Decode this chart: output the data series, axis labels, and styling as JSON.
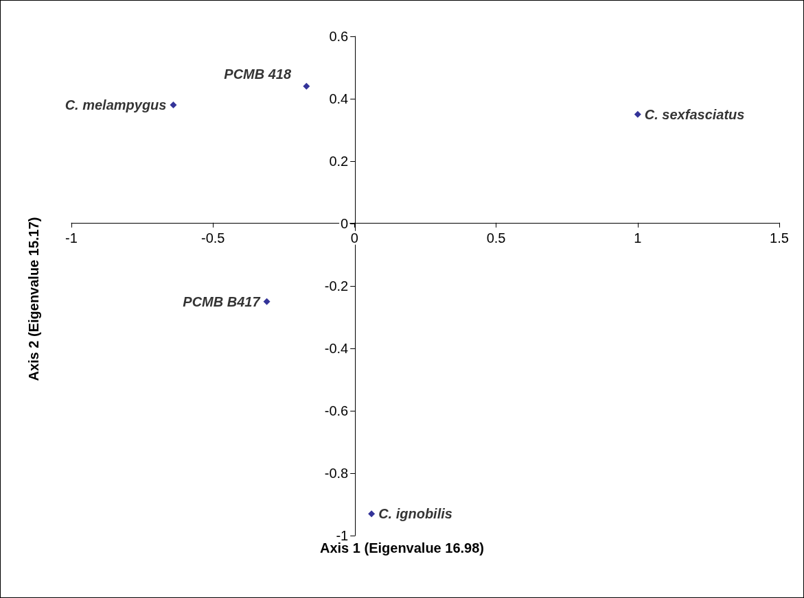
{
  "chart_data": {
    "type": "scatter",
    "xlabel": "Axis 1 (Eigenvalue 16.98)",
    "ylabel": "Axis 2 (Eigenvalue 15.17)",
    "x": [
      -0.64,
      -0.17,
      1.0,
      -0.31,
      0.06
    ],
    "values": [
      0.38,
      0.44,
      0.35,
      -0.25,
      -0.93
    ],
    "color": "#000080",
    "marker": "diamond",
    "xlim": [
      -1,
      1.5
    ],
    "xticks": [
      -1,
      -0.5,
      0,
      0.5,
      1,
      1.5
    ],
    "ylim": [
      -1,
      0.6
    ],
    "yticks": [
      -1,
      -0.8,
      -0.6,
      -0.4,
      -0.2,
      0,
      0.2,
      0.4,
      0.6
    ],
    "annotations": [
      {
        "text": "C. melampygus",
        "x": -0.64,
        "y": 0.38
      },
      {
        "text": "PCMB 418",
        "x": -0.17,
        "y": 0.44
      },
      {
        "text": "C. sexfasciatus",
        "x": 1.0,
        "y": 0.35
      },
      {
        "text": "PCMB B417",
        "x": -0.31,
        "y": -0.25
      },
      {
        "text": "C. ignobilis",
        "x": 0.06,
        "y": -0.93
      }
    ]
  }
}
